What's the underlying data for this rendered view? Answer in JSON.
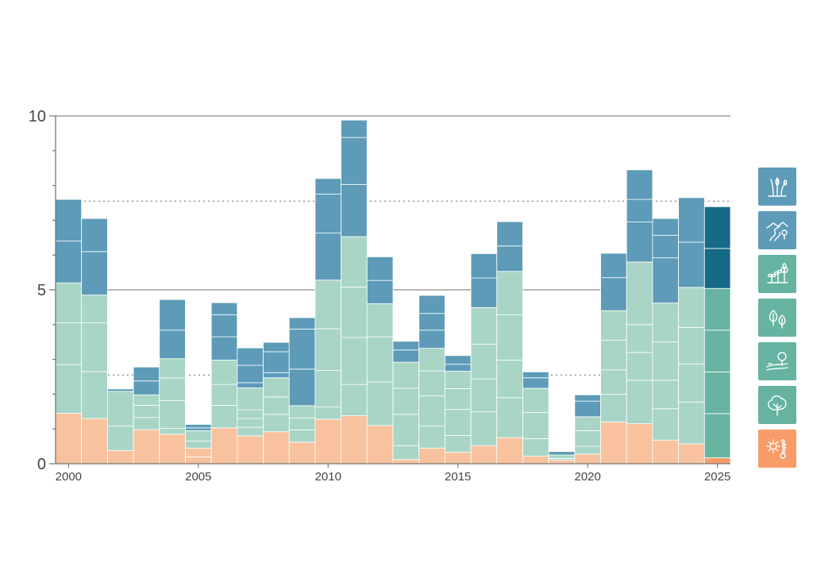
{
  "chart_data": {
    "type": "bar",
    "stacked": true,
    "xlim": [
      2000,
      2025
    ],
    "ylim": [
      0,
      10
    ],
    "x_tick_labels": [
      "2000",
      "2005",
      "2010",
      "2015",
      "2020",
      "2025"
    ],
    "y_tick_labels": [
      "0",
      "5",
      "10"
    ],
    "grid": "horizontal at 5 and 10; dotted reference lines",
    "reference_lines": [
      2.55,
      7.55
    ],
    "legend_placement": "right",
    "colors": {
      "blue": "#5d9bb8",
      "teal_light": "#a8d5c6",
      "peach": "#f8c29e",
      "highlight_blue": "#156a87",
      "highlight_green": "#66b3a2",
      "highlight_orange": "#f79c69"
    },
    "x": [
      2000,
      2001,
      2002,
      2003,
      2004,
      2005,
      2006,
      2007,
      2008,
      2009,
      2010,
      2011,
      2012,
      2013,
      2014,
      2015,
      2016,
      2017,
      2018,
      2019,
      2020,
      2021,
      2022,
      2023,
      2024,
      2025
    ],
    "series": [
      {
        "color": "peach",
        "segments": [
          [
            1.45
          ],
          [
            1.3
          ],
          [
            0.38
          ],
          [
            0.98
          ],
          [
            0.85
          ],
          [
            0.2,
            0.25
          ],
          [
            1.03
          ],
          [
            0.8
          ],
          [
            0.92
          ],
          [
            0.62
          ],
          [
            1.28
          ],
          [
            1.38
          ],
          [
            1.1
          ],
          [
            0.12
          ],
          [
            0.45
          ],
          [
            0.33
          ],
          [
            0.52
          ],
          [
            0.75
          ],
          [
            0.22
          ],
          [
            0.1
          ],
          [
            0.28
          ],
          [
            1.2
          ],
          [
            1.15
          ],
          [
            0.68
          ],
          [
            0.57
          ],
          [
            0.17
          ]
        ]
      },
      {
        "color": "teal_light",
        "segments": [
          [
            1.4,
            1.2,
            1.15
          ],
          [
            1.35,
            1.4,
            0.8
          ],
          [
            0.7,
            1.0
          ],
          [
            0.35,
            0.35,
            0.3
          ],
          [
            0.17,
            0.8,
            0.65,
            0.55
          ],
          [
            0.2,
            0.3
          ],
          [
            0.65,
            0.6,
            0.7
          ],
          [
            0.25,
            0.25,
            0.25,
            0.63
          ],
          [
            0.5,
            0.5,
            0.55
          ],
          [
            0.35,
            0.35,
            0.35
          ],
          [
            0.35,
            1.05,
            1.2,
            1.4
          ],
          [
            0.9,
            1.35,
            1.45,
            1.45
          ],
          [
            1.25,
            1.3,
            0.95
          ],
          [
            0.4,
            0.9,
            0.75,
            0.75
          ],
          [
            0.63,
            0.87,
            0.72,
            0.65
          ],
          [
            0.48,
            0.75,
            0.6,
            0.5
          ],
          [
            0.97,
            0.95,
            1.0,
            1.05
          ],
          [
            1.15,
            1.08,
            1.3,
            1.25
          ],
          [
            0.5,
            0.75,
            0.7
          ],
          [
            0.05,
            0.1
          ],
          [
            0.22,
            0.45,
            0.4
          ],
          [
            0.8,
            0.7,
            0.85,
            0.85
          ],
          [
            1.25,
            0.8,
            0.8,
            1.8
          ],
          [
            0.9,
            0.82,
            1.1,
            1.12
          ],
          [
            1.2,
            1.1,
            1.05,
            1.15
          ],
          [
            1.27,
            1.2,
            1.2,
            1.2
          ]
        ]
      },
      {
        "color": "blue",
        "segments": [
          [
            1.2,
            1.2
          ],
          [
            1.25,
            0.95
          ],
          [
            0.07
          ],
          [
            0.4,
            0.4
          ],
          [
            0.82,
            0.88
          ],
          [
            0.08,
            0.1
          ],
          [
            0.67,
            0.63,
            0.35
          ],
          [
            0.15,
            0.5,
            0.5
          ],
          [
            0.15,
            0.6,
            0.27
          ],
          [
            1.05,
            1.15,
            0.33
          ],
          [
            1.35,
            1.12,
            0.45
          ],
          [
            1.5,
            1.35,
            0.5
          ],
          [
            0.67,
            0.68,
            0.0
          ],
          [
            0.35,
            0.25,
            0.0
          ],
          [
            0.52,
            0.48,
            0.52
          ],
          [
            0.2,
            0.25,
            0.0
          ],
          [
            0.85,
            0.7,
            0.0
          ],
          [
            0.73,
            0.7,
            0.0
          ],
          [
            0.3,
            0.17,
            0.0
          ],
          [
            0.1,
            0.0,
            0.0
          ],
          [
            0.45,
            0.18,
            0.0
          ],
          [
            0.95,
            0.7,
            0.0
          ],
          [
            1.15,
            0.65,
            0.85,
            0.0
          ],
          [
            1.3,
            0.65,
            0.48,
            0.0
          ],
          [
            1.3,
            1.28,
            0.0
          ],
          [
            1.15,
            1.2,
            0.0
          ]
        ]
      }
    ],
    "highlighted_year": 2025
  },
  "legend": [
    {
      "icon": "wetland-reeds-icon",
      "color": "#5d9bb8"
    },
    {
      "icon": "river-hills-icon",
      "color": "#5d9bb8"
    },
    {
      "icon": "seedlings-icon",
      "color": "#66b3a2"
    },
    {
      "icon": "leaves-icon",
      "color": "#66b3a2"
    },
    {
      "icon": "tree-field-icon",
      "color": "#66b3a2"
    },
    {
      "icon": "tree-icon",
      "color": "#66b3a2"
    },
    {
      "icon": "sun-thermometer-icon",
      "color": "#f79c69"
    }
  ]
}
